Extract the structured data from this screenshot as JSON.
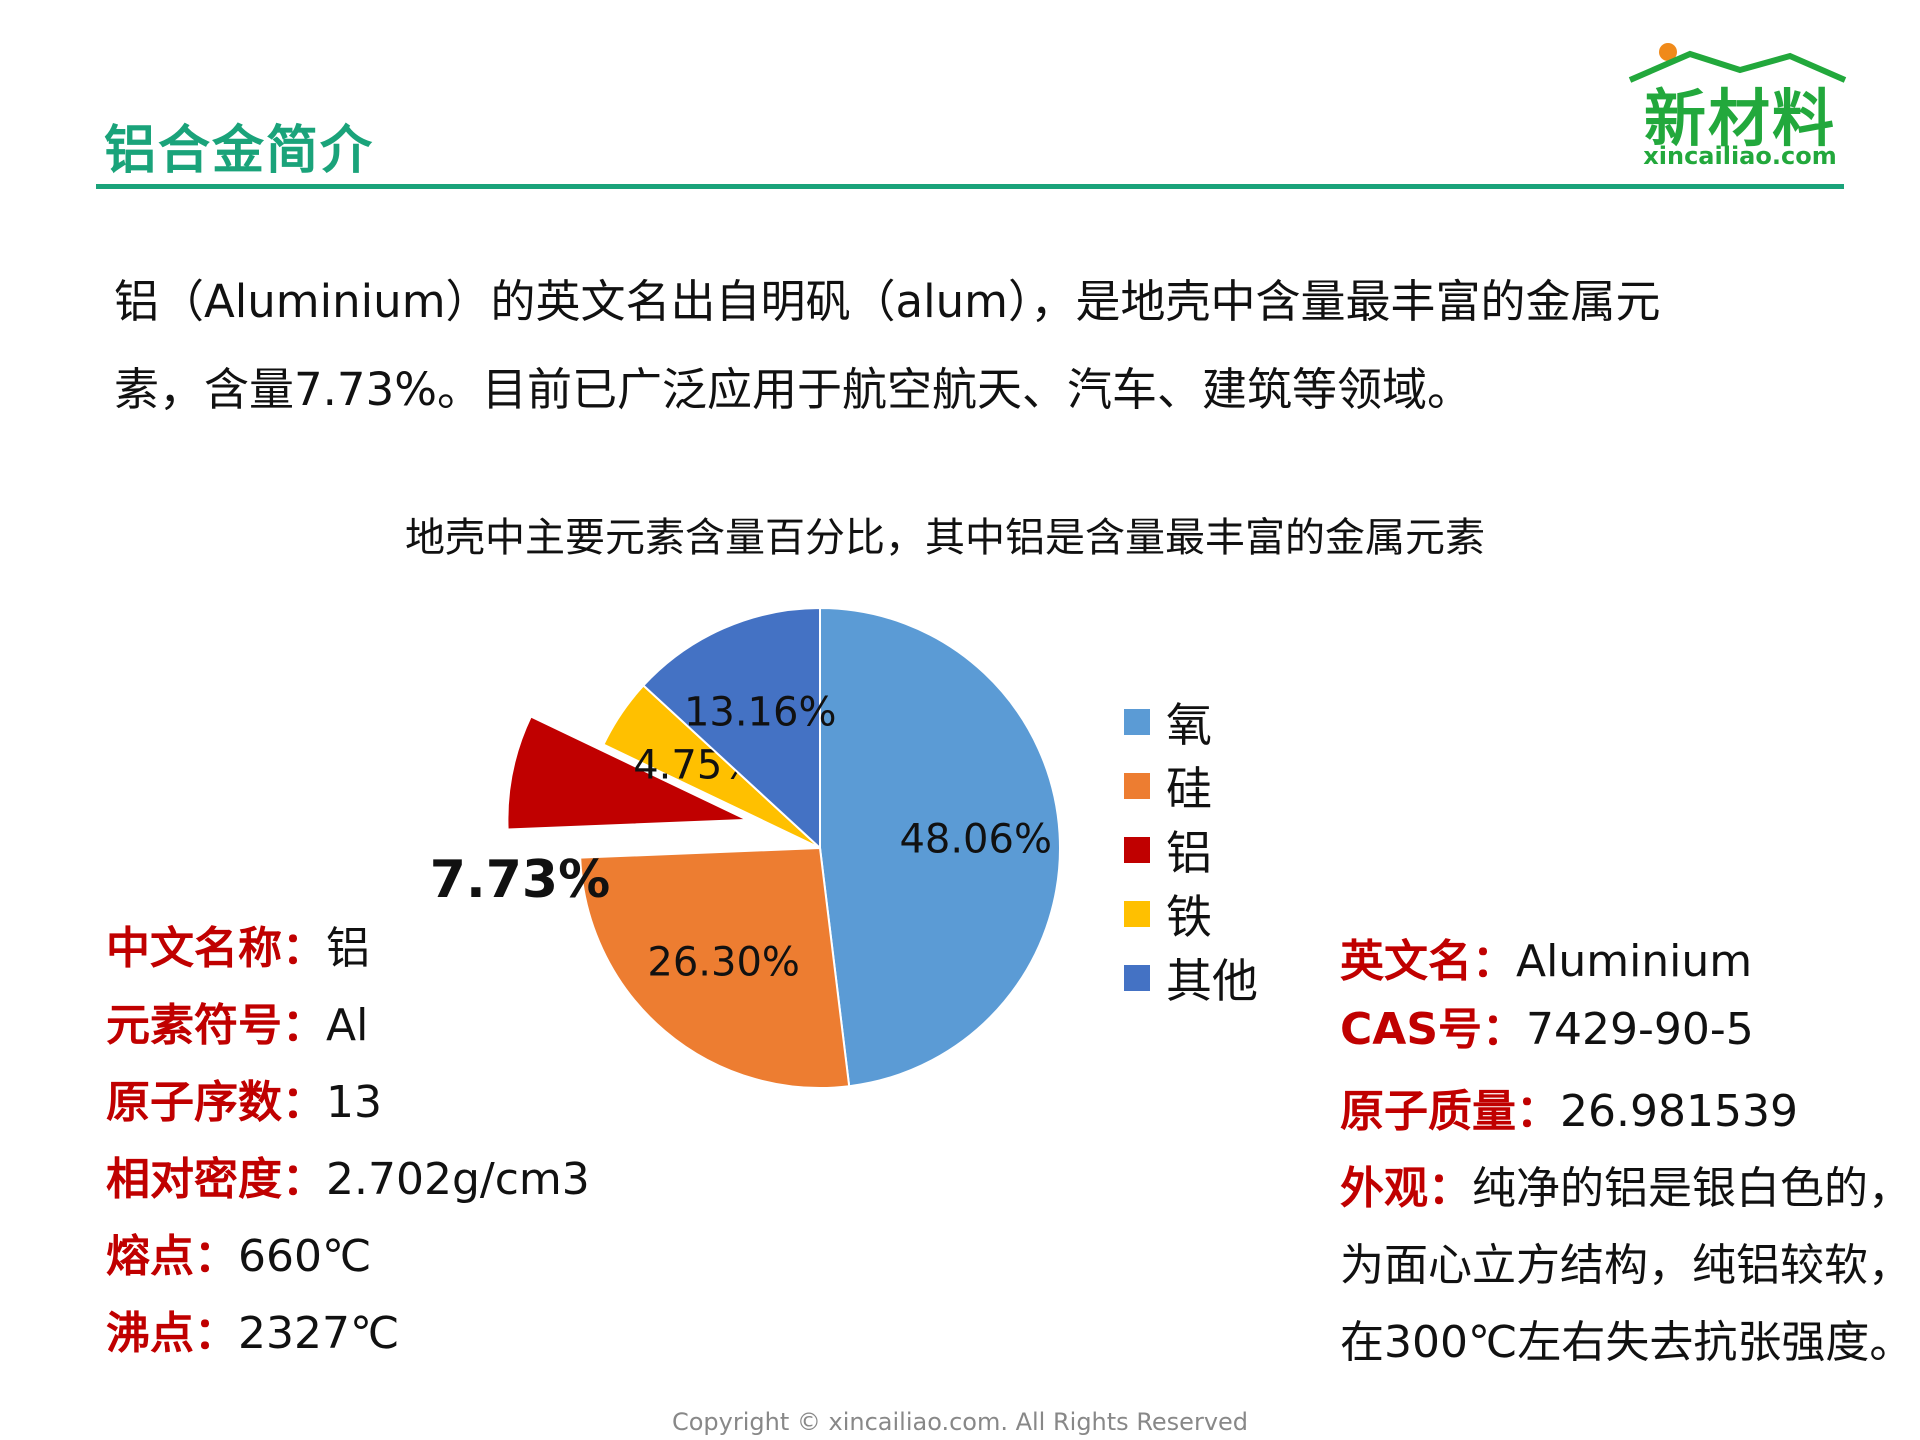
{
  "slide": {
    "title": "铝合金简介",
    "logo_text": "新材料",
    "logo_url": "xincailiao.com",
    "intro_line1": "铝（Aluminium）的英文名出自明矾（alum），是地壳中含量最丰富的金属元",
    "intro_line2": "素，含量7.73%。目前已广泛应用于航空航天、汽车、建筑等领域。",
    "copyright": "Copyright © xincailiao.com. All Rights Reserved"
  },
  "chart_data": {
    "type": "pie",
    "title": "地壳中主要元素含量百分比，其中铝是含量最丰富的金属元素",
    "legend_position": "right",
    "slices": [
      {
        "name": "氧",
        "value": 48.06,
        "label": "48.06%",
        "color": "#5b9bd5"
      },
      {
        "name": "硅",
        "value": 26.3,
        "label": "26.30%",
        "color": "#ed7d31"
      },
      {
        "name": "铝",
        "value": 7.73,
        "label": "7.73%",
        "color": "#c00000",
        "exploded": true
      },
      {
        "name": "铁",
        "value": 4.75,
        "label": "4.75%",
        "color": "#ffc000"
      },
      {
        "name": "其他",
        "value": 13.16,
        "label": "13.16%",
        "color": "#4472c4"
      }
    ]
  },
  "properties_left": [
    {
      "key": "中文名称：",
      "value": "铝"
    },
    {
      "key": "元素符号：",
      "value": "Al"
    },
    {
      "key": "原子序数：",
      "value": "13"
    },
    {
      "key": "相对密度：",
      "value": "2.702g/cm3"
    },
    {
      "key": "熔点：",
      "value": "660℃"
    },
    {
      "key": "沸点：",
      "value": "2327℃"
    }
  ],
  "properties_right": {
    "english_name_key": "英文名：",
    "english_name_value": "Aluminium",
    "cas_key": "CAS号：",
    "cas_value": "7429-90-5",
    "mass_key": "原子质量：",
    "mass_value": "26.981539",
    "appearance_key": "外观：",
    "appearance_line1": "纯净的铝是银白色的，",
    "appearance_line2": "为面心立方结构，纯铝较软，",
    "appearance_line3": "在300℃左右失去抗张强度。"
  }
}
